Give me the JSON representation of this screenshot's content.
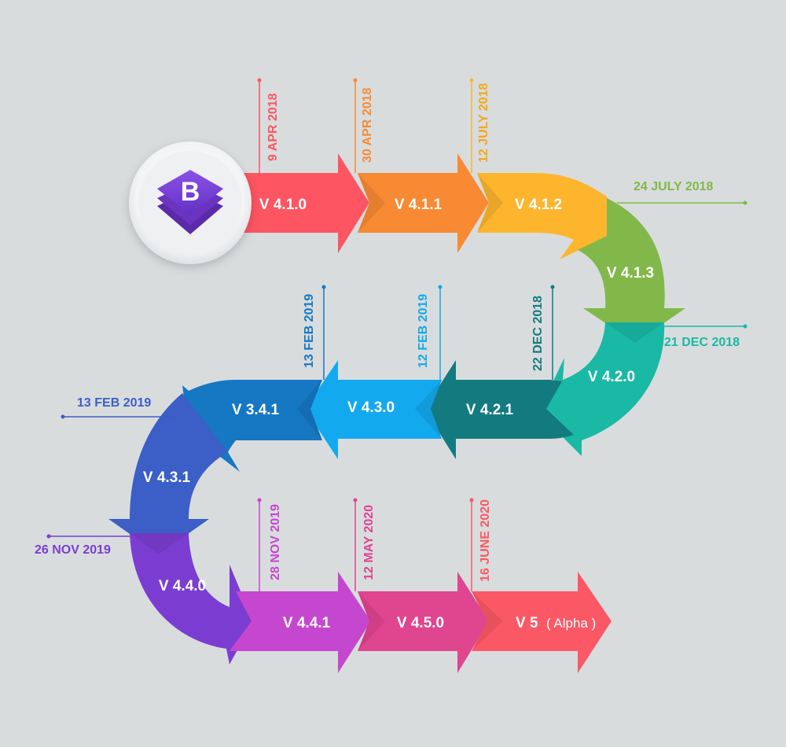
{
  "logo": {
    "letter": "B"
  },
  "colors": {
    "red": "#fd5562",
    "orange": "#f88a33",
    "yellow": "#fcb52d",
    "green": "#82b84a",
    "teal": "#19b9a6",
    "darkteal": "#137a80",
    "sky": "#13a9ee",
    "blue": "#1677c3",
    "indigo": "#3b5fc6",
    "violet": "#7b3dd1",
    "purple": "#c647cf",
    "pink": "#e04590",
    "coral": "#fb5865",
    "bg": "#d9dcdd"
  },
  "versions": [
    {
      "id": "v410",
      "label": "V 4.1.0"
    },
    {
      "id": "v411",
      "label": "V 4.1.1"
    },
    {
      "id": "v412",
      "label": "V 4.1.2"
    },
    {
      "id": "v413",
      "label": "V 4.1.3"
    },
    {
      "id": "v420",
      "label": "V 4.2.0"
    },
    {
      "id": "v421",
      "label": "V 4.2.1"
    },
    {
      "id": "v430",
      "label": "V 4.3.0"
    },
    {
      "id": "v341",
      "label": "V 3.4.1"
    },
    {
      "id": "v431",
      "label": "V 4.3.1"
    },
    {
      "id": "v440",
      "label": "V 4.4.0"
    },
    {
      "id": "v441",
      "label": "V 4.4.1"
    },
    {
      "id": "v450",
      "label": "V 4.5.0"
    },
    {
      "id": "v5",
      "label": "V 5",
      "suffix": "( Alpha )"
    }
  ],
  "dates": [
    {
      "id": "d1",
      "text": "9 APR 2018"
    },
    {
      "id": "d2",
      "text": "30 APR 2018"
    },
    {
      "id": "d3",
      "text": "12 JULY 2018"
    },
    {
      "id": "d4",
      "text": "24 JULY 2018"
    },
    {
      "id": "d5",
      "text": "21 DEC 2018"
    },
    {
      "id": "d6",
      "text": "22 DEC 2018"
    },
    {
      "id": "d7",
      "text": "12 FEB 2019"
    },
    {
      "id": "d8",
      "text": "13 FEB 2019"
    },
    {
      "id": "d9",
      "text": "13 FEB 2019"
    },
    {
      "id": "d10",
      "text": "26 NOV 2019"
    },
    {
      "id": "d11",
      "text": "28 NOV 2019"
    },
    {
      "id": "d12",
      "text": "12 MAY 2020"
    },
    {
      "id": "d13",
      "text": "16 JUNE 2020"
    }
  ]
}
